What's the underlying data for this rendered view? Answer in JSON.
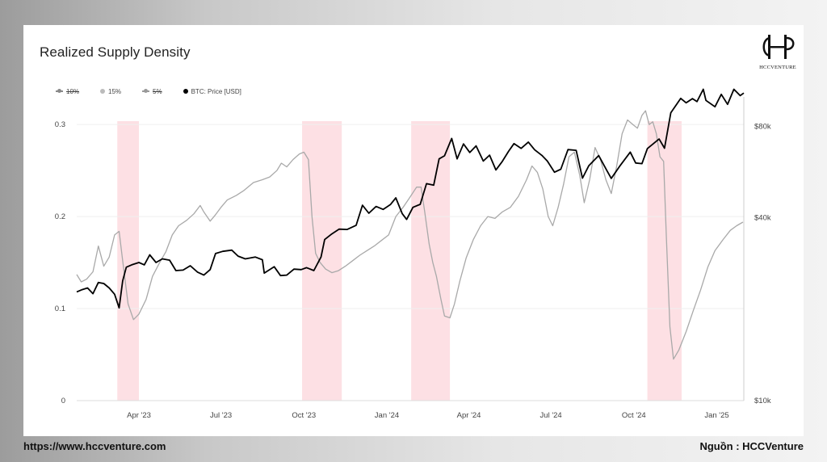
{
  "footer": {
    "url": "https://www.hccventure.com",
    "source": "Nguồn : HCCVenture"
  },
  "logo": {
    "text": "HCCVENTURE"
  },
  "colors": {
    "price": "#000000",
    "density": "#a9a9a9",
    "legend_10": "#888888",
    "legend_15": "#bbbbbb",
    "legend_5": "#999999",
    "highlight": "#fde0e4",
    "grid": "#efefef"
  },
  "chart_data": {
    "type": "line",
    "title": "Realized Supply Density",
    "legend": [
      {
        "label": "10%",
        "hidden": true
      },
      {
        "label": "15%",
        "hidden": false
      },
      {
        "label": "5%",
        "hidden": true
      },
      {
        "label": "BTC: Price [USD]",
        "hidden": false
      }
    ],
    "x_ticks": [
      "Apr '23",
      "Jul '23",
      "Oct '23",
      "Jan '24",
      "Apr '24",
      "Jul '24",
      "Oct '24",
      "Jan '25"
    ],
    "x_tick_dates": [
      "2023-04-01",
      "2023-07-01",
      "2023-10-01",
      "2024-01-01",
      "2024-04-01",
      "2024-07-01",
      "2024-10-01",
      "2025-01-01"
    ],
    "x_range": [
      "2023-01-22",
      "2025-01-31"
    ],
    "y_left": {
      "ticks": [
        "0",
        "0.1",
        "0.2",
        "0.3"
      ],
      "values": [
        0,
        0.1,
        0.2,
        0.3
      ],
      "range": [
        0,
        0.33
      ]
    },
    "y_right": {
      "ticks": [
        "$10k",
        "$40k",
        "$80k"
      ],
      "values": [
        10000,
        40000,
        80000
      ],
      "range": [
        10000,
        100000
      ]
    },
    "highlight_ranges": [
      [
        "2023-03-08",
        "2023-04-01"
      ],
      [
        "2023-09-29",
        "2023-11-12"
      ],
      [
        "2024-01-28",
        "2024-03-11"
      ],
      [
        "2024-10-16",
        "2024-11-23"
      ]
    ],
    "series": [
      {
        "name": "15%",
        "axis": "left",
        "points": [
          [
            "2023-01-22",
            0.137
          ],
          [
            "2023-01-27",
            0.129
          ],
          [
            "2023-02-02",
            0.132
          ],
          [
            "2023-02-09",
            0.14
          ],
          [
            "2023-02-15",
            0.168
          ],
          [
            "2023-02-21",
            0.146
          ],
          [
            "2023-02-27",
            0.156
          ],
          [
            "2023-03-05",
            0.18
          ],
          [
            "2023-03-10",
            0.184
          ],
          [
            "2023-03-14",
            0.152
          ],
          [
            "2023-03-20",
            0.105
          ],
          [
            "2023-03-26",
            0.088
          ],
          [
            "2023-04-01",
            0.094
          ],
          [
            "2023-04-09",
            0.11
          ],
          [
            "2023-04-16",
            0.135
          ],
          [
            "2023-04-24",
            0.15
          ],
          [
            "2023-05-01",
            0.162
          ],
          [
            "2023-05-08",
            0.18
          ],
          [
            "2023-05-15",
            0.19
          ],
          [
            "2023-05-24",
            0.196
          ],
          [
            "2023-06-01",
            0.203
          ],
          [
            "2023-06-08",
            0.212
          ],
          [
            "2023-06-12",
            0.205
          ],
          [
            "2023-06-19",
            0.195
          ],
          [
            "2023-06-25",
            0.202
          ],
          [
            "2023-07-01",
            0.21
          ],
          [
            "2023-07-08",
            0.218
          ],
          [
            "2023-07-18",
            0.223
          ],
          [
            "2023-07-26",
            0.228
          ],
          [
            "2023-08-06",
            0.237
          ],
          [
            "2023-08-16",
            0.24
          ],
          [
            "2023-08-24",
            0.243
          ],
          [
            "2023-09-01",
            0.25
          ],
          [
            "2023-09-06",
            0.258
          ],
          [
            "2023-09-12",
            0.254
          ],
          [
            "2023-09-19",
            0.262
          ],
          [
            "2023-09-26",
            0.268
          ],
          [
            "2023-10-01",
            0.27
          ],
          [
            "2023-10-06",
            0.262
          ],
          [
            "2023-10-10",
            0.2
          ],
          [
            "2023-10-14",
            0.16
          ],
          [
            "2023-10-19",
            0.15
          ],
          [
            "2023-10-25",
            0.143
          ],
          [
            "2023-11-01",
            0.139
          ],
          [
            "2023-11-08",
            0.141
          ],
          [
            "2023-11-16",
            0.146
          ],
          [
            "2023-11-24",
            0.152
          ],
          [
            "2023-12-02",
            0.158
          ],
          [
            "2023-12-10",
            0.163
          ],
          [
            "2023-12-18",
            0.168
          ],
          [
            "2023-12-26",
            0.174
          ],
          [
            "2024-01-03",
            0.18
          ],
          [
            "2024-01-11",
            0.2
          ],
          [
            "2024-01-19",
            0.21
          ],
          [
            "2024-01-26",
            0.22
          ],
          [
            "2024-02-03",
            0.232
          ],
          [
            "2024-02-08",
            0.232
          ],
          [
            "2024-02-12",
            0.205
          ],
          [
            "2024-02-17",
            0.17
          ],
          [
            "2024-02-21",
            0.15
          ],
          [
            "2024-02-25",
            0.135
          ],
          [
            "2024-03-01",
            0.11
          ],
          [
            "2024-03-05",
            0.092
          ],
          [
            "2024-03-11",
            0.09
          ],
          [
            "2024-03-16",
            0.105
          ],
          [
            "2024-03-22",
            0.13
          ],
          [
            "2024-03-29",
            0.155
          ],
          [
            "2024-04-06",
            0.175
          ],
          [
            "2024-04-14",
            0.19
          ],
          [
            "2024-04-22",
            0.2
          ],
          [
            "2024-04-30",
            0.198
          ],
          [
            "2024-05-08",
            0.205
          ],
          [
            "2024-05-17",
            0.21
          ],
          [
            "2024-05-26",
            0.222
          ],
          [
            "2024-06-04",
            0.24
          ],
          [
            "2024-06-10",
            0.255
          ],
          [
            "2024-06-16",
            0.248
          ],
          [
            "2024-06-22",
            0.23
          ],
          [
            "2024-06-28",
            0.2
          ],
          [
            "2024-07-03",
            0.19
          ],
          [
            "2024-07-09",
            0.21
          ],
          [
            "2024-07-15",
            0.235
          ],
          [
            "2024-07-21",
            0.265
          ],
          [
            "2024-07-27",
            0.27
          ],
          [
            "2024-08-02",
            0.245
          ],
          [
            "2024-08-07",
            0.215
          ],
          [
            "2024-08-13",
            0.24
          ],
          [
            "2024-08-19",
            0.275
          ],
          [
            "2024-08-25",
            0.262
          ],
          [
            "2024-08-31",
            0.24
          ],
          [
            "2024-09-06",
            0.225
          ],
          [
            "2024-09-12",
            0.255
          ],
          [
            "2024-09-18",
            0.29
          ],
          [
            "2024-09-24",
            0.305
          ],
          [
            "2024-09-30",
            0.3
          ],
          [
            "2024-10-05",
            0.296
          ],
          [
            "2024-10-10",
            0.31
          ],
          [
            "2024-10-14",
            0.315
          ],
          [
            "2024-10-18",
            0.3
          ],
          [
            "2024-10-22",
            0.303
          ],
          [
            "2024-10-26",
            0.29
          ],
          [
            "2024-10-30",
            0.265
          ],
          [
            "2024-11-03",
            0.26
          ],
          [
            "2024-11-06",
            0.18
          ],
          [
            "2024-11-10",
            0.08
          ],
          [
            "2024-11-14",
            0.045
          ],
          [
            "2024-11-20",
            0.055
          ],
          [
            "2024-11-28",
            0.075
          ],
          [
            "2024-12-06",
            0.098
          ],
          [
            "2024-12-14",
            0.12
          ],
          [
            "2024-12-22",
            0.145
          ],
          [
            "2024-12-30",
            0.163
          ],
          [
            "2025-01-08",
            0.175
          ],
          [
            "2025-01-16",
            0.185
          ],
          [
            "2025-01-23",
            0.19
          ],
          [
            "2025-01-30",
            0.194
          ]
        ]
      },
      {
        "name": "BTC: Price [USD]",
        "axis": "right",
        "points": [
          [
            "2023-01-22",
            22800
          ],
          [
            "2023-01-28",
            23200
          ],
          [
            "2023-02-03",
            23500
          ],
          [
            "2023-02-09",
            22500
          ],
          [
            "2023-02-15",
            24500
          ],
          [
            "2023-02-21",
            24300
          ],
          [
            "2023-02-27",
            23500
          ],
          [
            "2023-03-05",
            22400
          ],
          [
            "2023-03-10",
            20200
          ],
          [
            "2023-03-14",
            24800
          ],
          [
            "2023-03-18",
            27500
          ],
          [
            "2023-03-24",
            28000
          ],
          [
            "2023-04-01",
            28500
          ],
          [
            "2023-04-07",
            28000
          ],
          [
            "2023-04-13",
            30200
          ],
          [
            "2023-04-20",
            28500
          ],
          [
            "2023-04-27",
            29300
          ],
          [
            "2023-05-05",
            29000
          ],
          [
            "2023-05-12",
            26800
          ],
          [
            "2023-05-20",
            26900
          ],
          [
            "2023-05-28",
            27800
          ],
          [
            "2023-06-05",
            26500
          ],
          [
            "2023-06-12",
            25900
          ],
          [
            "2023-06-19",
            27000
          ],
          [
            "2023-06-25",
            30500
          ],
          [
            "2023-07-03",
            31000
          ],
          [
            "2023-07-13",
            31300
          ],
          [
            "2023-07-20",
            29900
          ],
          [
            "2023-07-28",
            29300
          ],
          [
            "2023-08-08",
            29700
          ],
          [
            "2023-08-16",
            29100
          ],
          [
            "2023-08-18",
            26300
          ],
          [
            "2023-08-29",
            27600
          ],
          [
            "2023-09-05",
            25800
          ],
          [
            "2023-09-12",
            25900
          ],
          [
            "2023-09-20",
            27100
          ],
          [
            "2023-09-28",
            27000
          ],
          [
            "2023-10-04",
            27400
          ],
          [
            "2023-10-12",
            26800
          ],
          [
            "2023-10-20",
            29700
          ],
          [
            "2023-10-24",
            33900
          ],
          [
            "2023-11-01",
            35400
          ],
          [
            "2023-11-09",
            36700
          ],
          [
            "2023-11-18",
            36600
          ],
          [
            "2023-11-28",
            37800
          ],
          [
            "2023-12-05",
            44000
          ],
          [
            "2023-12-12",
            41400
          ],
          [
            "2023-12-20",
            43600
          ],
          [
            "2023-12-28",
            42600
          ],
          [
            "2024-01-05",
            44200
          ],
          [
            "2024-01-11",
            46500
          ],
          [
            "2024-01-18",
            41300
          ],
          [
            "2024-01-23",
            39500
          ],
          [
            "2024-01-30",
            43300
          ],
          [
            "2024-02-07",
            44300
          ],
          [
            "2024-02-14",
            51800
          ],
          [
            "2024-02-22",
            51200
          ],
          [
            "2024-02-28",
            62500
          ],
          [
            "2024-03-05",
            64000
          ],
          [
            "2024-03-13",
            73000
          ],
          [
            "2024-03-19",
            62500
          ],
          [
            "2024-03-26",
            70000
          ],
          [
            "2024-04-02",
            65600
          ],
          [
            "2024-04-09",
            69000
          ],
          [
            "2024-04-17",
            61500
          ],
          [
            "2024-04-24",
            64300
          ],
          [
            "2024-05-01",
            57500
          ],
          [
            "2024-05-08",
            61300
          ],
          [
            "2024-05-15",
            66200
          ],
          [
            "2024-05-21",
            70200
          ],
          [
            "2024-05-29",
            67700
          ],
          [
            "2024-06-06",
            71000
          ],
          [
            "2024-06-13",
            67000
          ],
          [
            "2024-06-21",
            64200
          ],
          [
            "2024-06-27",
            61500
          ],
          [
            "2024-07-05",
            56500
          ],
          [
            "2024-07-12",
            57800
          ],
          [
            "2024-07-20",
            67100
          ],
          [
            "2024-07-29",
            66700
          ],
          [
            "2024-08-05",
            54000
          ],
          [
            "2024-08-12",
            59300
          ],
          [
            "2024-08-23",
            64100
          ],
          [
            "2024-09-01",
            57300
          ],
          [
            "2024-09-06",
            53900
          ],
          [
            "2024-09-15",
            59000
          ],
          [
            "2024-09-27",
            65800
          ],
          [
            "2024-10-03",
            60600
          ],
          [
            "2024-10-10",
            60300
          ],
          [
            "2024-10-16",
            67600
          ],
          [
            "2024-10-29",
            72700
          ],
          [
            "2024-11-04",
            67800
          ],
          [
            "2024-11-11",
            88700
          ],
          [
            "2024-11-22",
            98900
          ],
          [
            "2024-11-28",
            95600
          ],
          [
            "2024-12-05",
            98700
          ],
          [
            "2024-12-10",
            96500
          ],
          [
            "2024-12-17",
            106000
          ],
          [
            "2024-12-20",
            97400
          ],
          [
            "2024-12-30",
            92800
          ],
          [
            "2025-01-06",
            102000
          ],
          [
            "2025-01-13",
            94500
          ],
          [
            "2025-01-20",
            106000
          ],
          [
            "2025-01-27",
            101000
          ],
          [
            "2025-01-31",
            103000
          ]
        ]
      }
    ]
  }
}
